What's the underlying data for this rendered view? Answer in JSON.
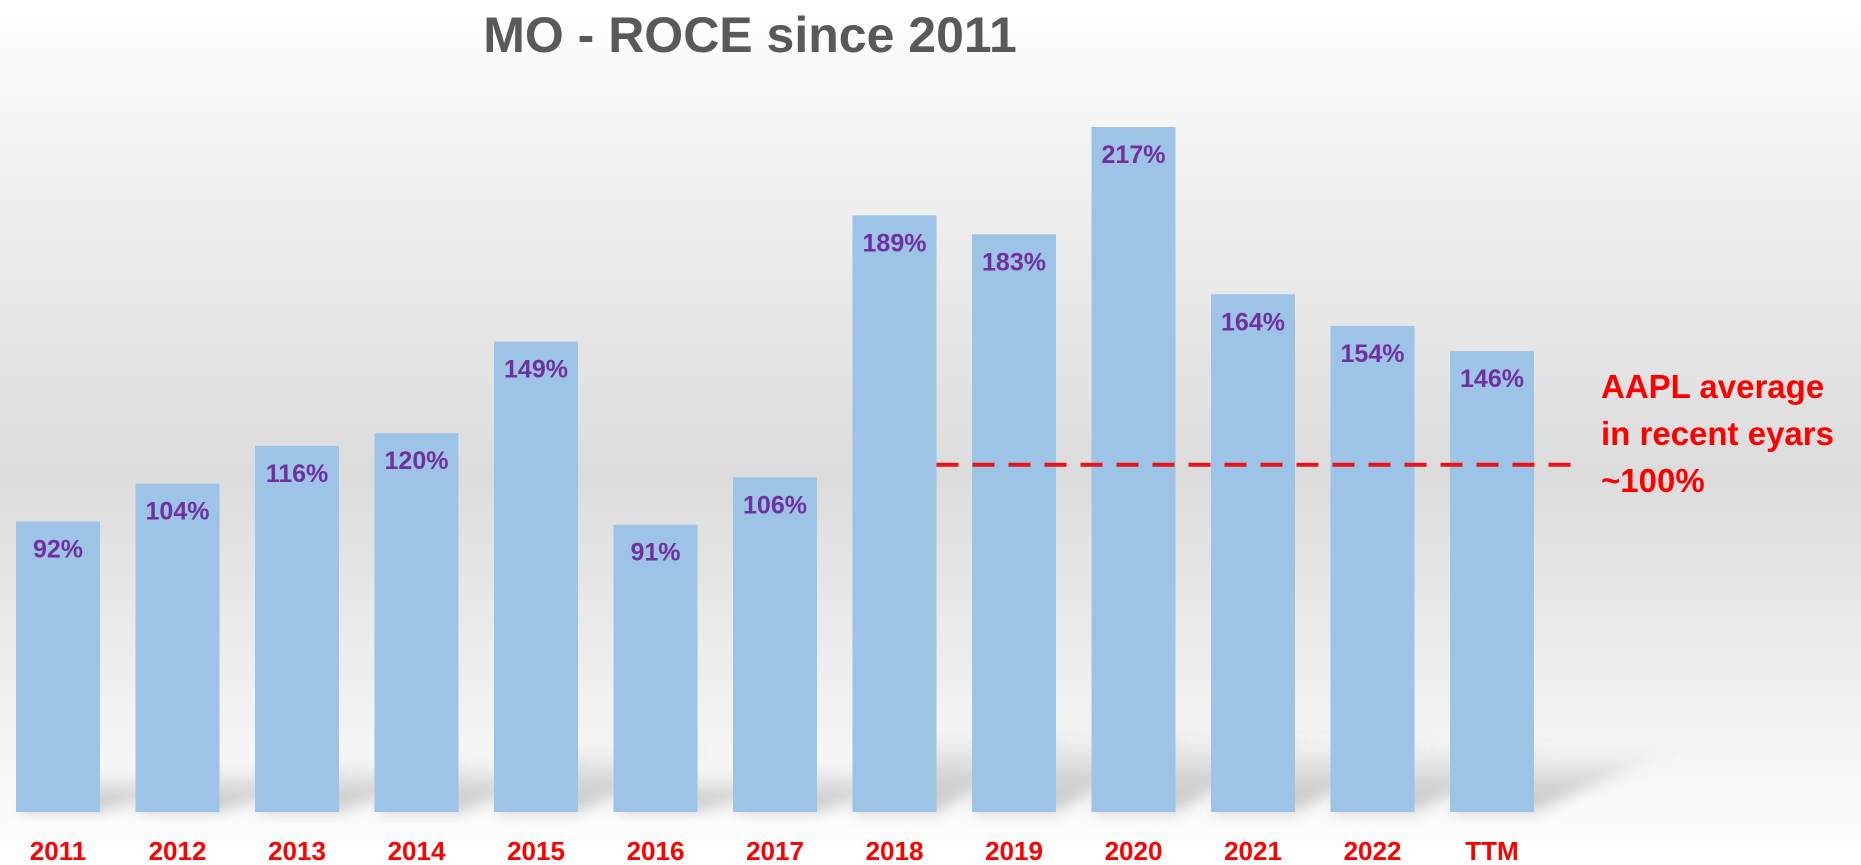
{
  "chart_data": {
    "type": "bar",
    "title": "MO - ROCE since 2011",
    "categories": [
      "2011",
      "2012",
      "2013",
      "2014",
      "2015",
      "2016",
      "2017",
      "2018",
      "2019",
      "2020",
      "2021",
      "2022",
      "TTM"
    ],
    "values": [
      92,
      104,
      116,
      120,
      149,
      91,
      106,
      189,
      183,
      217,
      164,
      154,
      146
    ],
    "data_labels": [
      "92%",
      "104%",
      "116%",
      "120%",
      "149%",
      "91%",
      "106%",
      "189%",
      "183%",
      "217%",
      "164%",
      "154%",
      "146%"
    ],
    "ylim": [
      0,
      217
    ],
    "grid": false,
    "legend": "none",
    "reference_line": {
      "value": 110,
      "style": "dashed",
      "color": "#e8141a",
      "annotation": [
        "AAPL average",
        "in recent eyars",
        "~100%"
      ]
    },
    "colors": {
      "bar": "#9dc3e6",
      "data_label": "#7030a0",
      "category_label": "#ff0000",
      "title": "#595959"
    }
  }
}
